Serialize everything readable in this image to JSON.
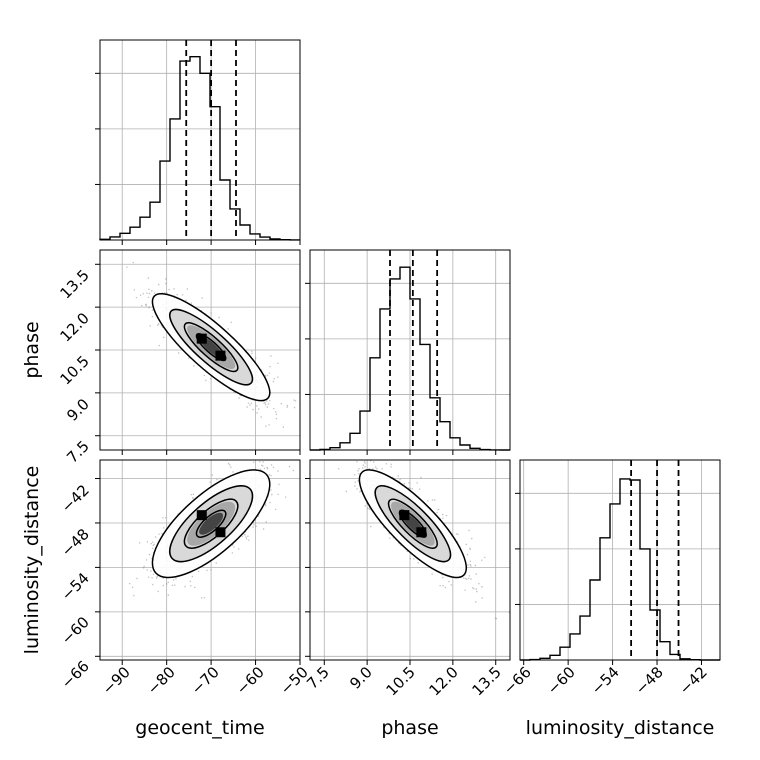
{
  "chart_data": {
    "type": "corner",
    "parameters": [
      "geocent_time",
      "phase",
      "luminosity_distance"
    ],
    "axis_labels": {
      "x": [
        "geocent_time",
        "phase",
        "luminosity_distance"
      ],
      "y": [
        "phase",
        "luminosity_distance"
      ]
    },
    "ranges": {
      "geocent_time": [
        -95,
        -50
      ],
      "phase": [
        7.0,
        14.0
      ],
      "luminosity_distance": [
        -66.5,
        -39.5
      ]
    },
    "ticks": {
      "geocent_time": [
        -90,
        -80,
        -70,
        -60,
        -50
      ],
      "phase": [
        7.5,
        9.0,
        10.5,
        12.0,
        13.5
      ],
      "luminosity_distance": [
        -66,
        -60,
        -54,
        -48,
        -42
      ]
    },
    "tick_labels": {
      "geocent_time": [
        "−90",
        "−80",
        "−70",
        "−60",
        "−50"
      ],
      "phase": [
        "7.5",
        "9.0",
        "10.5",
        "12.0",
        "13.5"
      ],
      "luminosity_distance": [
        "−66",
        "−60",
        "−54",
        "−48",
        "−42"
      ]
    },
    "quantiles": {
      "geocent_time": [
        -75.6,
        -70.0,
        -64.4
      ],
      "phase": [
        9.8,
        10.6,
        11.45
      ],
      "luminosity_distance": [
        -51.5,
        -48.0,
        -45.1
      ]
    },
    "histograms": {
      "geocent_time": {
        "bin_start": -95,
        "bin_width": 2.25,
        "ymax": 3600,
        "counts": [
          12,
          55,
          120,
          230,
          410,
          680,
          1420,
          2180,
          3220,
          3300,
          3000,
          2400,
          1080,
          560,
          270,
          110,
          52,
          18,
          6,
          2
        ]
      },
      "phase": {
        "bin_start": 7.0,
        "bin_width": 0.35,
        "ymax": 3600,
        "counts": [
          0,
          10,
          42,
          130,
          300,
          700,
          1660,
          2540,
          3080,
          3290,
          2720,
          1900,
          940,
          510,
          220,
          90,
          30,
          8,
          2,
          0
        ]
      },
      "luminosity_distance": {
        "bin_start": -66.5,
        "bin_width": 1.35,
        "ymax": 3600,
        "counts": [
          0,
          8,
          30,
          85,
          230,
          470,
          790,
          1440,
          2200,
          2810,
          3260,
          3240,
          2000,
          900,
          330,
          100,
          22,
          5,
          0,
          0
        ]
      }
    },
    "scatter": {
      "phase_vs_geocent_time": {
        "corr": -0.85
      },
      "luminosity_distance_vs_geocent_time": {
        "corr": 0.73
      },
      "luminosity_distance_vs_phase": {
        "corr": -0.82
      }
    },
    "grid": true,
    "colors": {
      "line": "#000000",
      "grid": "#b0b0b0",
      "point": "#8c8c8c"
    }
  }
}
